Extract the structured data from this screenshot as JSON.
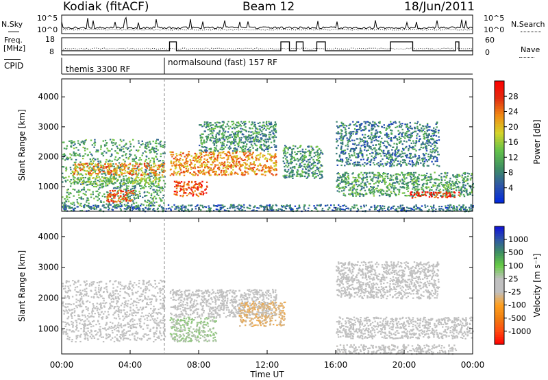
{
  "header": {
    "station": "Kodiak (fitACF)",
    "beam": "Beam 12",
    "date": "18/Jun/2011"
  },
  "top_panels": {
    "nsky_label": "N.Sky",
    "nsky_ticks": [
      "10^5",
      "10^0"
    ],
    "freq_label_1": "Freq.",
    "freq_label_2": "[MHz]",
    "freq_ticks": [
      "18",
      "8"
    ],
    "nsearch_label": "N.Search",
    "nsearch_ticks": [
      "10^5",
      "10^0"
    ],
    "nave_label": "Nave",
    "nave_ticks": [
      "60",
      "0"
    ],
    "cpid_label": "CPID",
    "cpid_segments": [
      "themis 3300 RF",
      "normalsound (fast) 157 RF"
    ]
  },
  "chart_data": [
    {
      "type": "heatmap",
      "panel": "power",
      "ylabel": "Slant Range [km]",
      "y_ticks": [
        "4000",
        "3000",
        "2000",
        "1000"
      ],
      "ylim": [
        180,
        4600
      ],
      "x_ticks": [
        "00:00",
        "04:00",
        "08:00",
        "12:00",
        "16:00",
        "20:00",
        "00:00"
      ],
      "xlim_hours": [
        0,
        24
      ],
      "colorbar_label": "Power [dB]",
      "colorbar_ticks": [
        "28",
        "24",
        "20",
        "16",
        "12",
        "8",
        "4"
      ],
      "colorbar_range": [
        0,
        30
      ],
      "colorbar_colors": [
        "#0028e0",
        "#2e56a6",
        "#3f8f62",
        "#63c24a",
        "#d4d42a",
        "#f08c14",
        "#e22c10",
        "#ff0000"
      ],
      "regions": [
        {
          "t": [
            0,
            6
          ],
          "r": [
            300,
            2600
          ],
          "db": 10
        },
        {
          "t": [
            0.6,
            6
          ],
          "r": [
            1400,
            1800
          ],
          "db": 21
        },
        {
          "t": [
            0.6,
            6
          ],
          "r": [
            1100,
            1350
          ],
          "db": 13
        },
        {
          "t": [
            2.6,
            4.2
          ],
          "r": [
            500,
            900
          ],
          "db": 24
        },
        {
          "t": [
            6.3,
            12.5
          ],
          "r": [
            1400,
            2200
          ],
          "db": 21
        },
        {
          "t": [
            6.5,
            8.5
          ],
          "r": [
            700,
            1200
          ],
          "db": 25
        },
        {
          "t": [
            8,
            12.5
          ],
          "r": [
            2200,
            3200
          ],
          "db": 9
        },
        {
          "t": [
            12.9,
            15.2
          ],
          "r": [
            1300,
            2400
          ],
          "db": 9
        },
        {
          "t": [
            16,
            24
          ],
          "r": [
            700,
            1500
          ],
          "db": 10
        },
        {
          "t": [
            20.3,
            23.2
          ],
          "r": [
            650,
            850
          ],
          "db": 27
        },
        {
          "t": [
            16,
            22
          ],
          "r": [
            1700,
            3200
          ],
          "db": 7
        },
        {
          "t": [
            0,
            24
          ],
          "r": [
            200,
            420
          ],
          "db": 6
        }
      ]
    },
    {
      "type": "heatmap",
      "panel": "velocity",
      "ylabel": "Slant Range [km]",
      "y_ticks": [
        "4000",
        "3000",
        "2000",
        "1000"
      ],
      "ylim": [
        180,
        4600
      ],
      "x_ticks": [
        "00:00",
        "04:00",
        "08:00",
        "12:00",
        "16:00",
        "20:00",
        "00:00"
      ],
      "xlim_hours": [
        0,
        24
      ],
      "xlabel": "Time UT",
      "colorbar_label": "Velocity [m s⁻¹]",
      "colorbar_ticks": [
        "1000",
        "500",
        "100",
        "25",
        "-25",
        "-100",
        "-500",
        "-1000"
      ],
      "colorbar_range": [
        -1200,
        1200
      ],
      "colorbar_colors": [
        "#ff0000",
        "#ff4a10",
        "#f07f10",
        "#ffa020",
        "#c0c0c0",
        "#c0c0c0",
        "#66cc44",
        "#3f8f62",
        "#2e56a6",
        "#1010d8"
      ],
      "regions": [
        {
          "t": [
            0,
            6
          ],
          "r": [
            600,
            2600
          ],
          "v": 0
        },
        {
          "t": [
            6.3,
            9
          ],
          "r": [
            600,
            1400
          ],
          "v": 220
        },
        {
          "t": [
            6.3,
            12.5
          ],
          "r": [
            1400,
            2300
          ],
          "v": 0
        },
        {
          "t": [
            10.3,
            13
          ],
          "r": [
            1100,
            1900
          ],
          "v": -260
        },
        {
          "t": [
            16,
            24
          ],
          "r": [
            700,
            1400
          ],
          "v": 0
        },
        {
          "t": [
            16,
            22
          ],
          "r": [
            2000,
            3200
          ],
          "v": 0
        },
        {
          "t": [
            16,
            23
          ],
          "r": [
            200,
            500
          ],
          "v": -60
        }
      ]
    }
  ]
}
